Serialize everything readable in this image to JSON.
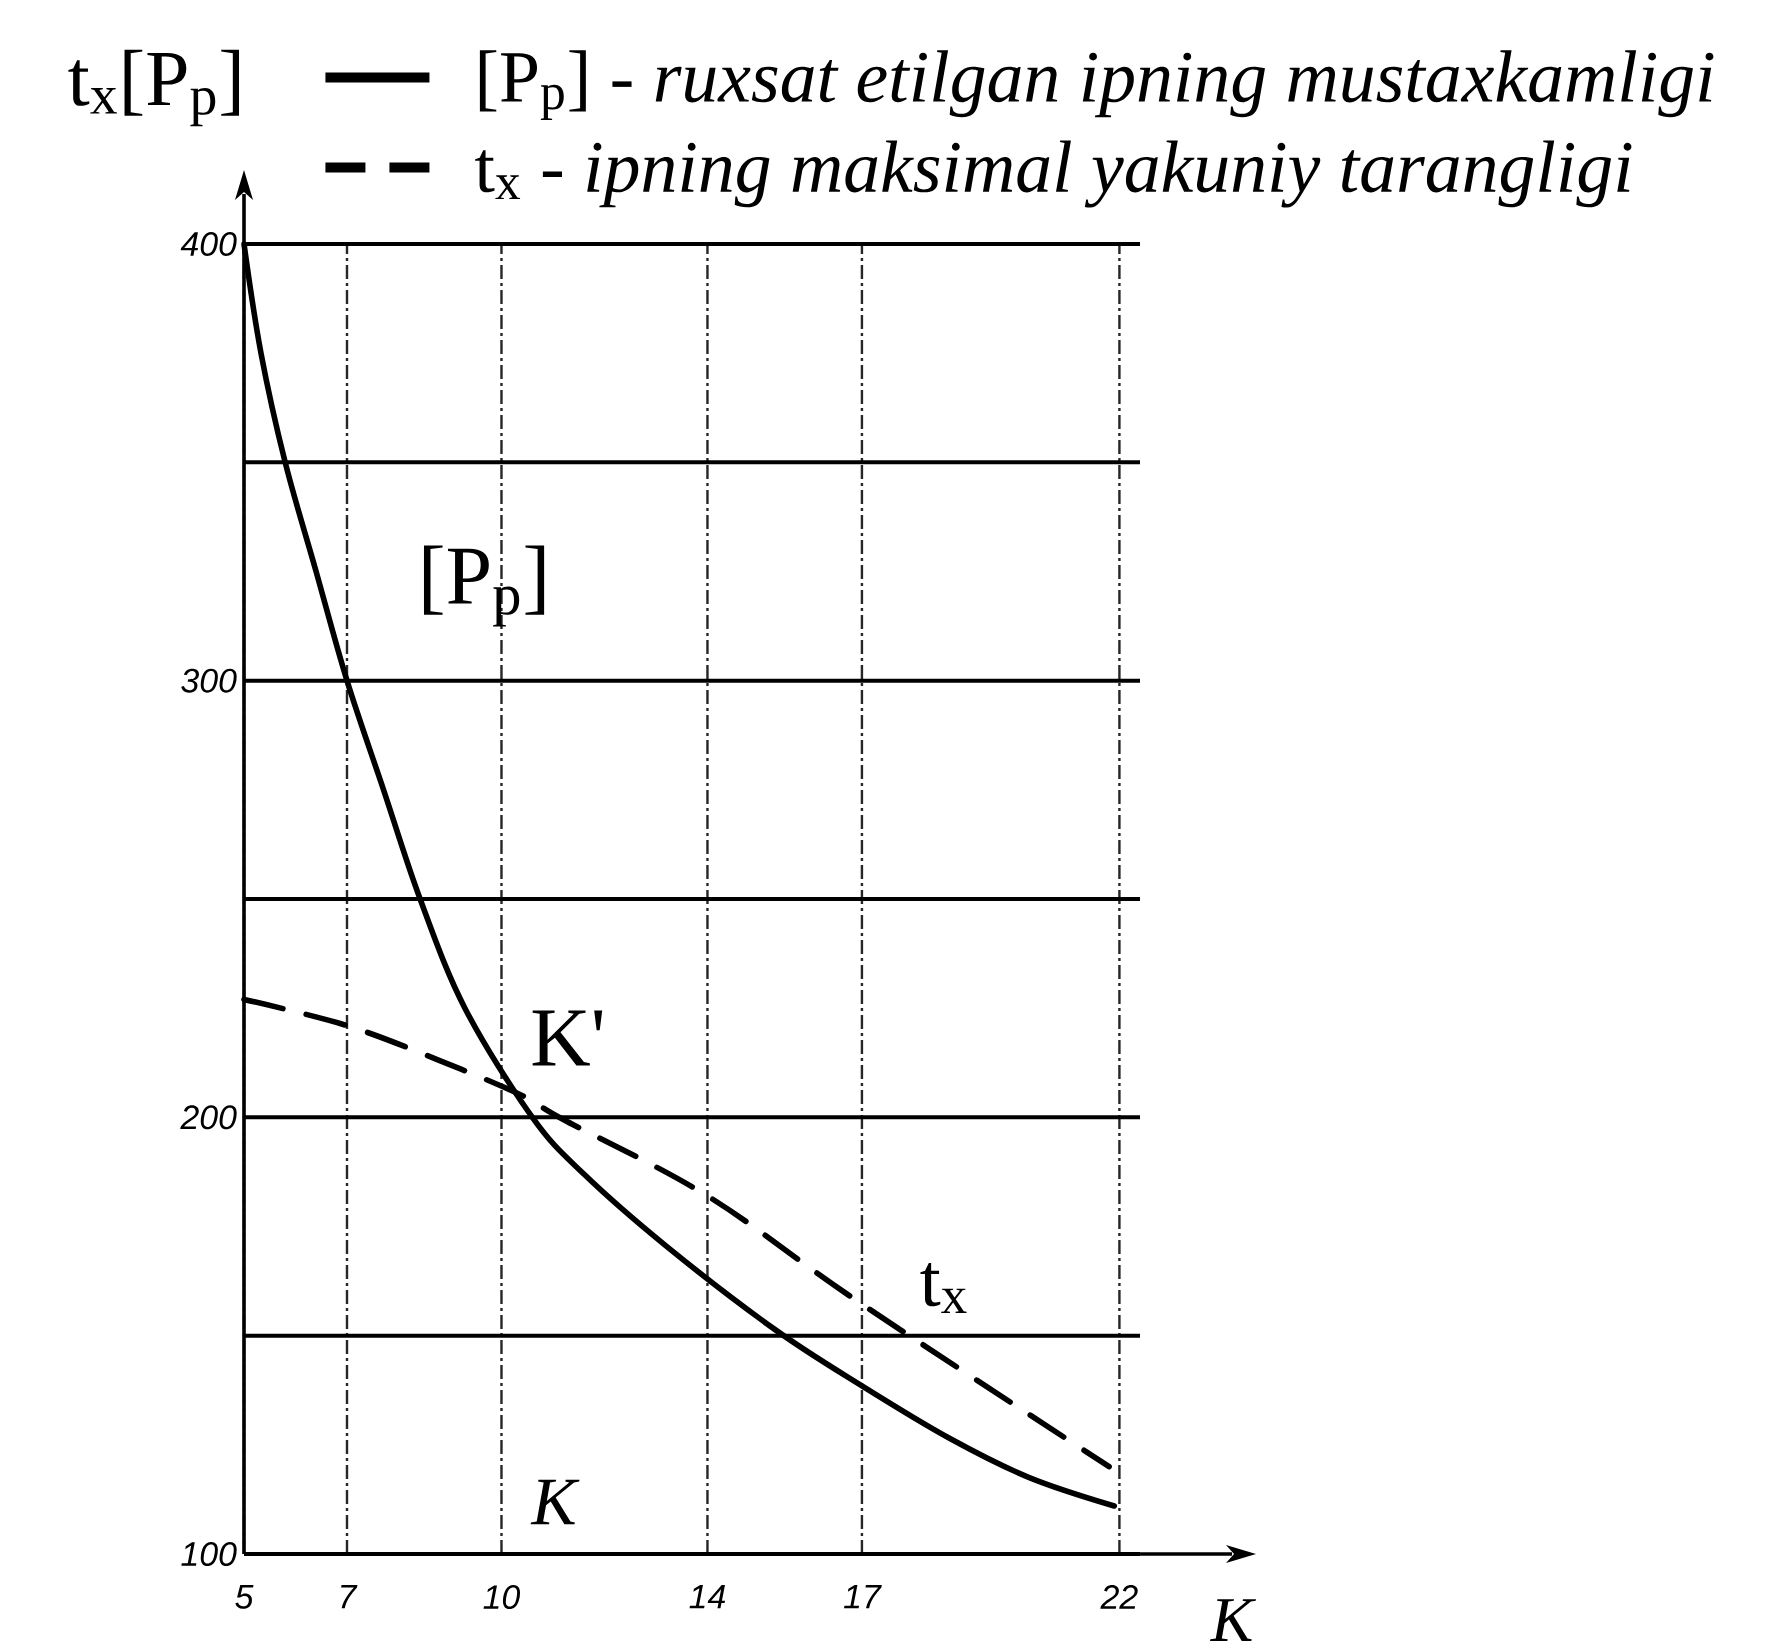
{
  "chart_data": {
    "type": "line",
    "ylabel": "t$_{x}$[P$_{p}$]",
    "xlabel": "K",
    "series": [
      {
        "name": "[P$_{p}$] - *ruxsat etilgan ipning mustaxkamligi*",
        "color": "#000000",
        "line_style": "solid",
        "x": [
          5,
          5.33,
          5.8,
          6.4,
          7,
          7.71,
          8.42,
          9.29,
          10.6,
          11.6,
          13.2,
          15.3,
          17,
          18.7,
          20.25,
          21.9
        ],
        "values": [
          400,
          375,
          350,
          325,
          300,
          275,
          250,
          225,
          200,
          187,
          170.5,
          151.5,
          138.5,
          126.5,
          117.5,
          111
        ]
      },
      {
        "name": "t$_{x}$ - *ipning maksimal yakuniy tarangligi*",
        "color": "#000000",
        "line_style": "dashed",
        "x": [
          5,
          7,
          8.8,
          10.4,
          11.2,
          14,
          16.9,
          21.8
        ],
        "values": [
          227,
          221,
          213,
          205,
          199.5,
          182,
          158,
          120
        ]
      }
    ],
    "xlim": [
      5,
      22.4
    ],
    "ylim": [
      100,
      400
    ],
    "xticks": [
      5,
      7,
      10,
      14,
      17,
      22
    ],
    "yticks": [
      100,
      {
        "value": 150,
        "label": null
      },
      200,
      {
        "value": 250,
        "label": null
      },
      300,
      {
        "value": 350,
        "label": null
      },
      400
    ],
    "grid": true,
    "legend": "top",
    "annotations": [
      "[P$_{p}$]",
      "K'",
      "t$_{x}$",
      "K"
    ]
  }
}
